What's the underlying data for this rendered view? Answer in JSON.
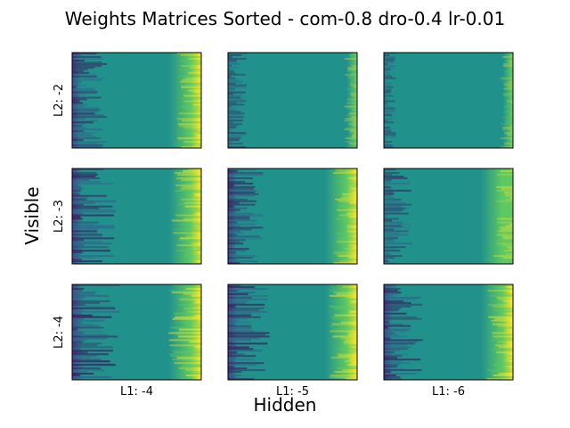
{
  "chart_data": {
    "type": "heatmap",
    "title": "Weights Matrices Sorted - com-0.8 dro-0.4 lr-0.01",
    "xlabel": "Hidden",
    "ylabel": "Visible",
    "colormap": "viridis",
    "grid": false,
    "row_labels": [
      "L2: -2",
      "L2: -3",
      "L2: -4"
    ],
    "col_labels": [
      "L1: -4",
      "L1: -5",
      "L1: -6"
    ],
    "panels_note_values": "sorted weight matrices; values increase left to right within each panel",
    "panel_contrast": [
      [
        0.55,
        0.3,
        0.2
      ],
      [
        0.7,
        0.55,
        0.45
      ],
      [
        0.75,
        0.65,
        0.6
      ]
    ],
    "colors": {
      "low": "#440154",
      "mid_low": "#3b528b",
      "mid": "#21918c",
      "mid_high": "#5ec962",
      "high": "#fde725"
    }
  }
}
